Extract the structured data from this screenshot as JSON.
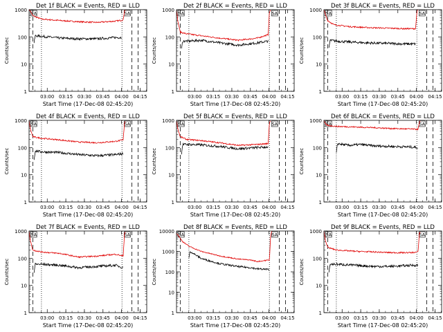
{
  "figure": {
    "common_xlabel": "Start Time (17-Dec-08 02:45:20)",
    "common_ylabel": "Counts/sec",
    "x_tick_labels": [
      "03:00",
      "03:15",
      "03:30",
      "03:45",
      "04:00",
      "04:15"
    ],
    "colors": {
      "events": "#000000",
      "lld": "#e00000",
      "axes": "#000000"
    },
    "flag_labels": [
      "SA",
      "SA"
    ]
  },
  "chart_data": [
    {
      "type": "line",
      "title": "Det 1f BLACK = Events, RED = LLD",
      "xlabel": "Start Time (17-Dec-08 02:45:20)",
      "ylabel": "Counts/sec",
      "yscale": "log",
      "ylim": [
        1,
        1000
      ],
      "y_tick_labels": [
        "1",
        "10",
        "100",
        "1000"
      ],
      "xlim_minutes_after_start": [
        0,
        95
      ],
      "x_tick_labels": [
        "03:00",
        "03:15",
        "03:30",
        "03:45",
        "04:00",
        "04:15"
      ],
      "series": [
        {
          "name": "LLD",
          "color": "#e00000",
          "x": [
            0,
            1,
            3,
            10,
            25,
            40,
            55,
            70,
            76,
            77,
            78
          ],
          "values": [
            1000,
            900,
            600,
            450,
            400,
            360,
            340,
            380,
            420,
            900,
            1000
          ]
        },
        {
          "name": "Events",
          "color": "#000000",
          "x": [
            4,
            5,
            10,
            25,
            40,
            55,
            70,
            75
          ],
          "values": [
            60,
            110,
            105,
            90,
            85,
            85,
            95,
            95
          ]
        }
      ]
    },
    {
      "type": "line",
      "title": "Det 2f BLACK = Events, RED = LLD",
      "xlabel": "Start Time (17-Dec-08 02:45:20)",
      "ylabel": "Counts/sec",
      "yscale": "log",
      "ylim": [
        1,
        1000
      ],
      "y_tick_labels": [
        "1",
        "10",
        "100",
        "1000"
      ],
      "xlim_minutes_after_start": [
        0,
        95
      ],
      "x_tick_labels": [
        "03:00",
        "03:15",
        "03:30",
        "03:45",
        "04:00",
        "04:15"
      ],
      "series": [
        {
          "name": "LLD",
          "color": "#e00000",
          "x": [
            0,
            1,
            3,
            8,
            20,
            35,
            50,
            65,
            74,
            75,
            76
          ],
          "values": [
            1000,
            400,
            150,
            130,
            110,
            90,
            75,
            90,
            120,
            800,
            1000
          ]
        },
        {
          "name": "Events",
          "color": "#000000",
          "x": [
            4,
            5,
            10,
            20,
            35,
            50,
            65,
            74
          ],
          "values": [
            35,
            70,
            70,
            75,
            60,
            50,
            60,
            70
          ]
        }
      ]
    },
    {
      "type": "line",
      "title": "Det 3f BLACK = Events, RED = LLD",
      "xlabel": "Start Time (17-Dec-08 02:45:20)",
      "ylabel": "Counts/sec",
      "yscale": "log",
      "ylim": [
        1,
        1000
      ],
      "y_tick_labels": [
        "1",
        "10",
        "100",
        "1000"
      ],
      "xlim_minutes_after_start": [
        0,
        95
      ],
      "x_tick_labels": [
        "03:00",
        "03:15",
        "03:30",
        "03:45",
        "04:00",
        "04:15"
      ],
      "series": [
        {
          "name": "LLD",
          "color": "#e00000",
          "x": [
            0,
            1,
            3,
            8,
            20,
            35,
            50,
            65,
            74,
            75,
            76
          ],
          "values": [
            1000,
            700,
            400,
            280,
            240,
            220,
            210,
            200,
            200,
            800,
            1000
          ]
        },
        {
          "name": "Events",
          "color": "#000000",
          "x": [
            4,
            5,
            10,
            20,
            35,
            50,
            65,
            74
          ],
          "values": [
            40,
            75,
            70,
            65,
            60,
            58,
            55,
            55
          ]
        }
      ]
    },
    {
      "type": "line",
      "title": "Det 4f BLACK = Events, RED = LLD",
      "xlabel": "Start Time (17-Dec-08 02:45:20)",
      "ylabel": "Counts/sec",
      "yscale": "log",
      "ylim": [
        1,
        1000
      ],
      "y_tick_labels": [
        "1",
        "10",
        "100",
        "1000"
      ],
      "xlim_minutes_after_start": [
        0,
        95
      ],
      "x_tick_labels": [
        "03:00",
        "03:15",
        "03:30",
        "03:45",
        "04:00",
        "04:15"
      ],
      "series": [
        {
          "name": "LLD",
          "color": "#e00000",
          "x": [
            0,
            1,
            3,
            10,
            25,
            40,
            55,
            70,
            76,
            77,
            78
          ],
          "values": [
            1000,
            500,
            250,
            220,
            190,
            160,
            150,
            170,
            190,
            800,
            1000
          ]
        },
        {
          "name": "Events",
          "color": "#000000",
          "x": [
            4,
            5,
            10,
            25,
            40,
            55,
            70,
            76
          ],
          "values": [
            35,
            75,
            70,
            65,
            55,
            50,
            55,
            60
          ]
        }
      ]
    },
    {
      "type": "line",
      "title": "Det 5f BLACK = Events, RED = LLD",
      "xlabel": "Start Time (17-Dec-08 02:45:20)",
      "ylabel": "Counts/sec",
      "yscale": "log",
      "ylim": [
        1,
        1000
      ],
      "y_tick_labels": [
        "1",
        "10",
        "100",
        "1000"
      ],
      "xlim_minutes_after_start": [
        0,
        95
      ],
      "x_tick_labels": [
        "03:00",
        "03:15",
        "03:30",
        "03:45",
        "04:00",
        "04:15"
      ],
      "series": [
        {
          "name": "LLD",
          "color": "#e00000",
          "x": [
            0,
            1,
            3,
            8,
            20,
            35,
            50,
            65,
            74,
            75,
            76
          ],
          "values": [
            1000,
            500,
            250,
            200,
            180,
            150,
            120,
            130,
            140,
            800,
            1000
          ]
        },
        {
          "name": "Events",
          "color": "#000000",
          "x": [
            4,
            5,
            10,
            20,
            35,
            50,
            65,
            74
          ],
          "values": [
            60,
            130,
            130,
            125,
            110,
            90,
            100,
            105
          ]
        }
      ]
    },
    {
      "type": "line",
      "title": "Det 6f BLACK = Events, RED = LLD",
      "xlabel": "Start Time (17-Dec-08 02:45:20)",
      "ylabel": "Counts/sec",
      "yscale": "log",
      "ylim": [
        1,
        1000
      ],
      "y_tick_labels": [
        "1",
        "10",
        "100",
        "1000"
      ],
      "xlim_minutes_after_start": [
        0,
        95
      ],
      "x_tick_labels": [
        "03:00",
        "03:15",
        "03:30",
        "03:45",
        "04:00",
        "04:15"
      ],
      "series": [
        {
          "name": "LLD",
          "color": "#e00000",
          "x": [
            0,
            1,
            3,
            10,
            25,
            40,
            55,
            70,
            76,
            77,
            78
          ],
          "values": [
            1000,
            750,
            650,
            600,
            570,
            540,
            500,
            480,
            470,
            800,
            1000
          ]
        },
        {
          "name": "Events",
          "color": "#000000",
          "x": [
            10,
            11,
            20,
            30,
            40,
            55,
            70,
            76
          ],
          "values": [
            60,
            140,
            120,
            130,
            115,
            110,
            105,
            100
          ]
        }
      ]
    },
    {
      "type": "line",
      "title": "Det 7f BLACK = Events, RED = LLD",
      "xlabel": "Start Time (17-Dec-08 02:45:20)",
      "ylabel": "Counts/sec",
      "yscale": "log",
      "ylim": [
        1,
        1000
      ],
      "y_tick_labels": [
        "1",
        "10",
        "100",
        "1000"
      ],
      "xlim_minutes_after_start": [
        0,
        95
      ],
      "x_tick_labels": [
        "03:00",
        "03:15",
        "03:30",
        "03:45",
        "04:00",
        "04:15"
      ],
      "series": [
        {
          "name": "LLD",
          "color": "#e00000",
          "x": [
            0,
            1,
            3,
            10,
            25,
            40,
            55,
            70,
            76,
            77,
            78
          ],
          "values": [
            1000,
            450,
            200,
            170,
            150,
            110,
            120,
            140,
            120,
            800,
            1000
          ]
        },
        {
          "name": "Events",
          "color": "#000000",
          "x": [
            4,
            5,
            10,
            25,
            40,
            55,
            70,
            76
          ],
          "values": [
            30,
            60,
            60,
            55,
            45,
            50,
            55,
            45
          ]
        }
      ]
    },
    {
      "type": "line",
      "title": "Det 8f BLACK = Events, RED = LLD",
      "xlabel": "Start Time (17-Dec-08 02:45:20)",
      "ylabel": "Counts/sec",
      "yscale": "log",
      "ylim": [
        1,
        10000
      ],
      "y_tick_labels": [
        "1",
        "10",
        "100",
        "1000",
        "10000"
      ],
      "xlim_minutes_after_start": [
        0,
        95
      ],
      "x_tick_labels": [
        "03:00",
        "03:15",
        "03:30",
        "03:45",
        "04:00",
        "04:15"
      ],
      "series": [
        {
          "name": "LLD",
          "color": "#e00000",
          "x": [
            0,
            5,
            10,
            20,
            35,
            50,
            60,
            65,
            75,
            76,
            77
          ],
          "values": [
            8000,
            3000,
            1800,
            1000,
            600,
            420,
            380,
            320,
            380,
            6000,
            10000
          ]
        },
        {
          "name": "Events",
          "color": "#000000",
          "x": [
            10,
            11,
            20,
            35,
            50,
            60,
            65,
            75
          ],
          "values": [
            500,
            1000,
            450,
            250,
            180,
            160,
            140,
            130
          ]
        }
      ]
    },
    {
      "type": "line",
      "title": "Det 9f BLACK = Events, RED = LLD",
      "xlabel": "Start Time (17-Dec-08 02:45:20)",
      "ylabel": "Counts/sec",
      "yscale": "log",
      "ylim": [
        1,
        1000
      ],
      "y_tick_labels": [
        "1",
        "10",
        "100",
        "1000"
      ],
      "xlim_minutes_after_start": [
        0,
        95
      ],
      "x_tick_labels": [
        "03:00",
        "03:15",
        "03:30",
        "03:45",
        "04:00",
        "04:15"
      ],
      "series": [
        {
          "name": "LLD",
          "color": "#e00000",
          "x": [
            0,
            1,
            3,
            10,
            25,
            40,
            55,
            70,
            76,
            77,
            78
          ],
          "values": [
            1000,
            500,
            250,
            200,
            180,
            170,
            160,
            160,
            170,
            800,
            1000
          ]
        },
        {
          "name": "Events",
          "color": "#000000",
          "x": [
            4,
            5,
            10,
            25,
            40,
            55,
            70,
            76
          ],
          "values": [
            30,
            60,
            60,
            55,
            50,
            50,
            55,
            55
          ]
        }
      ]
    }
  ]
}
